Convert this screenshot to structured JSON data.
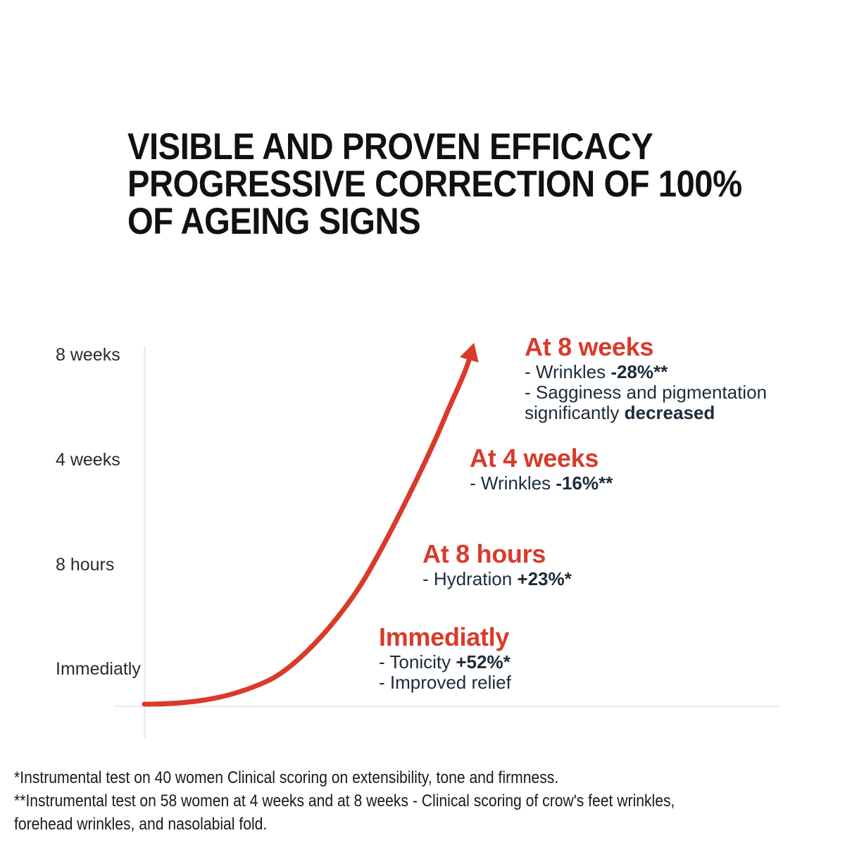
{
  "title": {
    "lines": [
      "VISIBLE AND PROVEN EFFICACY",
      "PROGRESSIVE CORRECTION OF 100%",
      "OF AGEING SIGNS"
    ]
  },
  "colors": {
    "accent_red": "#d93a2b",
    "text_navy": "#1d2b3a",
    "title_black": "#111111",
    "axis_gray": "#ebebeb"
  },
  "y_axis": {
    "labels": [
      "8 weeks",
      "4 weeks",
      "8 hours",
      "Immediatly"
    ]
  },
  "stages": [
    {
      "heading": "At 8 weeks",
      "lines": [
        [
          {
            "text": "- Wrinkles ",
            "bold": false
          },
          {
            "text": "-28%**",
            "bold": true
          }
        ],
        [
          {
            "text": "- Sagginess and pigmentation",
            "bold": false
          }
        ],
        [
          {
            "text": "significantly ",
            "bold": false
          },
          {
            "text": "decreased",
            "bold": true
          }
        ]
      ]
    },
    {
      "heading": "At 4 weeks",
      "lines": [
        [
          {
            "text": "- Wrinkles ",
            "bold": false
          },
          {
            "text": "-16%**",
            "bold": true
          }
        ]
      ]
    },
    {
      "heading": "At 8 hours",
      "lines": [
        [
          {
            "text": "- Hydration ",
            "bold": false
          },
          {
            "text": "+23%*",
            "bold": true
          }
        ]
      ]
    },
    {
      "heading": "Immediatly",
      "lines": [
        [
          {
            "text": "- Tonicity ",
            "bold": false
          },
          {
            "text": "+52%*",
            "bold": true
          }
        ],
        [
          {
            "text": "- Improved relief",
            "bold": false
          }
        ]
      ]
    }
  ],
  "footnotes": {
    "display_lines": [
      "*Instrumental test on 40 women Clinical scoring on extensibility, tone and firmness.",
      "**Instrumental test on 58 women at 4 weeks and at 8 weeks - Clinical scoring of crow's feet wrinkles,",
      "forehead wrinkles, and nasolabial fold."
    ]
  },
  "chart_data": {
    "type": "line",
    "title": "VISIBLE AND PROVEN EFFICACY PROGRESSIVE CORRECTION OF 100% OF AGEING SIGNS",
    "y_axis_tick_labels_top_to_bottom": [
      "8 weeks",
      "4 weeks",
      "8 hours",
      "Immediatly"
    ],
    "x_axis_tick_labels": [],
    "grid": false,
    "legend": "none",
    "line_color": "#d93a2b",
    "curve_shape": "exponential rise ending in an upward arrowhead",
    "data_points": [
      {
        "time": "Immediatly",
        "results": [
          "Tonicity +52%*",
          "Improved relief"
        ]
      },
      {
        "time": "At 8 hours",
        "results": [
          "Hydration +23%*"
        ]
      },
      {
        "time": "At 4 weeks",
        "results": [
          "Wrinkles -16%**"
        ]
      },
      {
        "time": "At 8 weeks",
        "results": [
          "Wrinkles -28%**",
          "Sagginess and pigmentation significantly decreased"
        ]
      }
    ]
  }
}
